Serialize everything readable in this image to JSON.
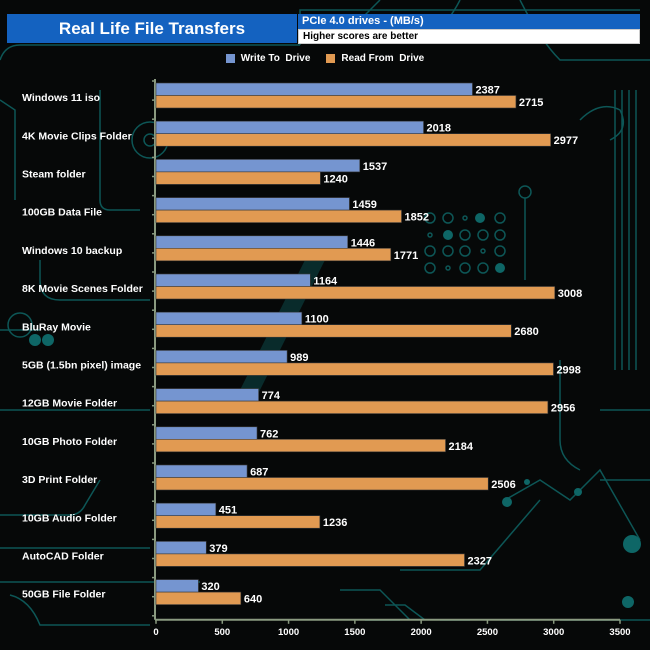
{
  "header": {
    "title": "Real Life File Transfers",
    "subtitle": "PCIe 4.0 drives - (MB/s)",
    "note": "Higher scores are better"
  },
  "colors": {
    "title_bg": "#1462c0",
    "write": "#7595d0",
    "read": "#e19a52",
    "background": "#060808",
    "circuit": "#0e5f5f",
    "axis": "#8a9a80"
  },
  "chart_data": {
    "type": "bar",
    "orientation": "horizontal",
    "title": "Real Life File Transfers",
    "subtitle": "PCIe 4.0 drives - (MB/s)",
    "xlabel": "",
    "ylabel": "",
    "xlim": [
      0,
      3500
    ],
    "xticks": [
      0,
      500,
      1000,
      1500,
      2000,
      2500,
      3000,
      3500
    ],
    "grid": false,
    "legend_position": "top-center",
    "categories": [
      "Windows 11 iso",
      "4K Movie Clips Folder",
      "Steam folder",
      "100GB Data File",
      "Windows 10 backup",
      "8K Movie Scenes Folder",
      "BluRay Movie",
      "5GB (1.5bn pixel) image",
      "12GB Movie Folder",
      "10GB Photo Folder",
      "3D Print Folder",
      "10GB Audio Folder",
      "AutoCAD Folder",
      "50GB File Folder"
    ],
    "series": [
      {
        "name": "Write To  Drive",
        "color": "#7595d0",
        "values": [
          2387,
          2018,
          1537,
          1459,
          1446,
          1164,
          1100,
          989,
          774,
          762,
          687,
          451,
          379,
          320
        ]
      },
      {
        "name": "Read From  Drive",
        "color": "#e19a52",
        "values": [
          2715,
          2977,
          1240,
          1852,
          1771,
          3008,
          2680,
          2998,
          2956,
          2184,
          2506,
          1236,
          2327,
          640
        ]
      }
    ]
  }
}
